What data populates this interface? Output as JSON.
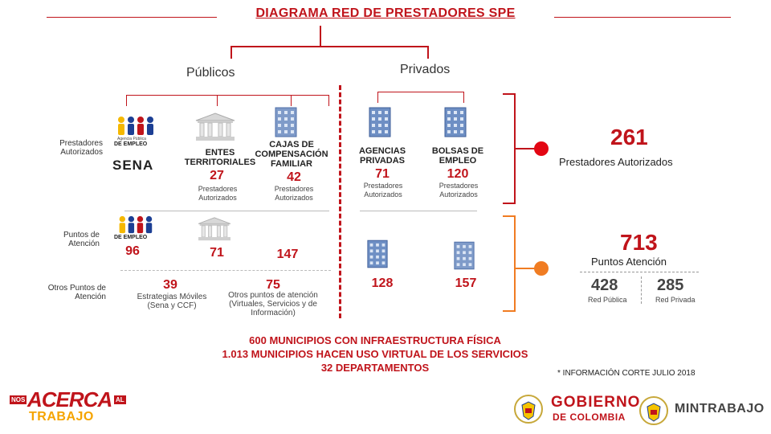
{
  "title": "DIAGRAMA RED DE PRESTADORES SPE",
  "sections": {
    "publicos": "Públicos",
    "privados": "Privados"
  },
  "row_labels": {
    "autorizados": "Prestadores Autorizados",
    "puntos": "Puntos de Atención",
    "otros": "Otros Puntos de Atención"
  },
  "logo_text": {
    "agencia": "Agencia Pública",
    "empleo": "DE EMPLEO"
  },
  "sena": "SENA",
  "entities": {
    "entes": {
      "label": "ENTES TERRITORIALES",
      "count": "27",
      "sub": "Prestadores Autorizados",
      "puntos": "71"
    },
    "cajas": {
      "label": "CAJAS DE COMPENSACIÓN FAMILIAR",
      "count": "42",
      "sub": "Prestadores Autorizados",
      "puntos": "147"
    },
    "agencias": {
      "label": "AGENCIAS PRIVADAS",
      "count": "71",
      "sub": "Prestadores Autorizados",
      "puntos": "128"
    },
    "bolsas": {
      "label": "BOLSAS DE EMPLEO",
      "count": "120",
      "sub": "Prestadores Autorizados",
      "puntos": "157"
    }
  },
  "sena_puntos": "96",
  "otros": {
    "moviles": {
      "count": "39",
      "label": "Estrategias Móviles (Sena y CCF)"
    },
    "otros_puntos": {
      "count": "75",
      "label": "Otros puntos de atención (Virtuales, Servicios y de Información)"
    }
  },
  "totals": {
    "prestadores": {
      "count": "261",
      "label": "Prestadores Autorizados"
    },
    "puntos": {
      "count": "713",
      "label": "Puntos Atención"
    },
    "publica": {
      "count": "428",
      "label": "Red Pública"
    },
    "privada": {
      "count": "285",
      "label": "Red Privada"
    }
  },
  "bottom": {
    "line1": "600 MUNICIPIOS CON INFRAESTRUCTURA FÍSICA",
    "line2": "1.013 MUNICIPIOS HACEN USO VIRTUAL DE LOS SERVICIOS",
    "line3": "32 DEPARTAMENTOS"
  },
  "note": "* INFORMACIÓN CORTE JULIO 2018",
  "footer": {
    "nos": "NOS",
    "acerca": "ACERCA",
    "al": "AL",
    "trabajo": "TRABAJO",
    "gobierno": "GOBIERNO",
    "de_colombia": "DE COLOMBIA",
    "mintrabajo": "MINTRABAJO"
  },
  "colors": {
    "accent": "#c0141b",
    "orange": "#f07c22",
    "red_dot": "#e30613"
  }
}
